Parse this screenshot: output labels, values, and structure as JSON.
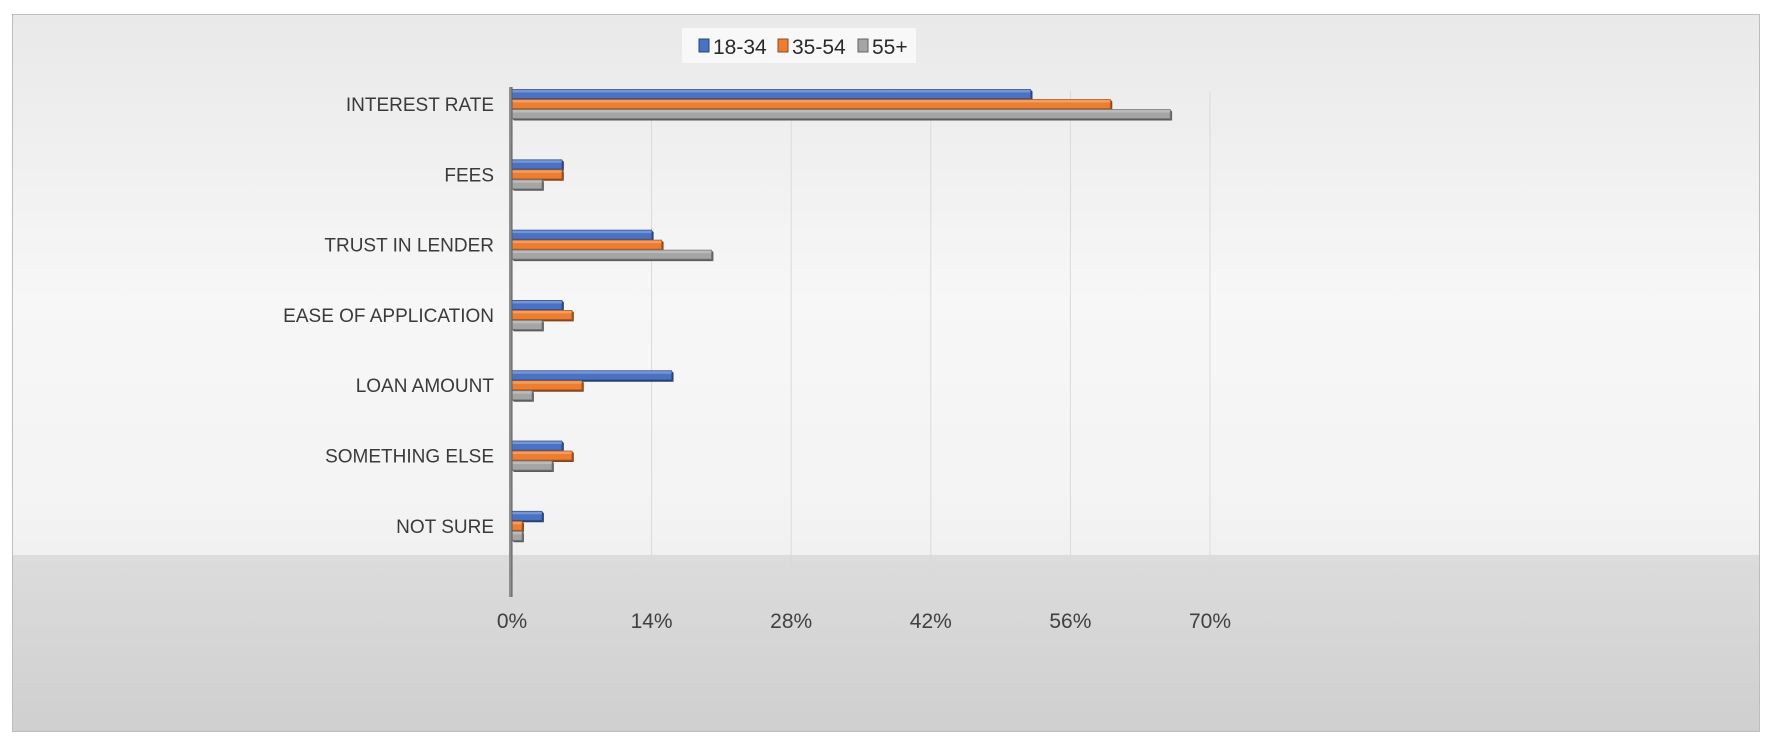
{
  "chart_data": {
    "type": "bar",
    "orientation": "horizontal",
    "title": "",
    "xlabel": "",
    "ylabel": "",
    "categories": [
      "INTEREST RATE",
      "FEES",
      "TRUST IN LENDER",
      "EASE OF APPLICATION",
      "LOAN AMOUNT",
      "SOMETHING ELSE",
      "NOT SURE"
    ],
    "series": [
      {
        "name": "18-34",
        "color": "#4a72c4",
        "values": [
          52,
          5,
          14,
          5,
          16,
          5,
          3
        ]
      },
      {
        "name": "35-54",
        "color": "#ed7d31",
        "values": [
          60,
          5,
          15,
          6,
          7,
          6,
          1
        ]
      },
      {
        "name": "55+",
        "color": "#a5a5a5",
        "values": [
          66,
          3,
          20,
          3,
          2,
          4,
          1
        ]
      }
    ],
    "xlim": [
      0,
      70
    ],
    "xticks": [
      0,
      14,
      28,
      42,
      56,
      70
    ],
    "xtick_labels": [
      "0%",
      "14%",
      "28%",
      "42%",
      "56%",
      "70%"
    ],
    "grid": true,
    "legend_position": "top-center"
  }
}
